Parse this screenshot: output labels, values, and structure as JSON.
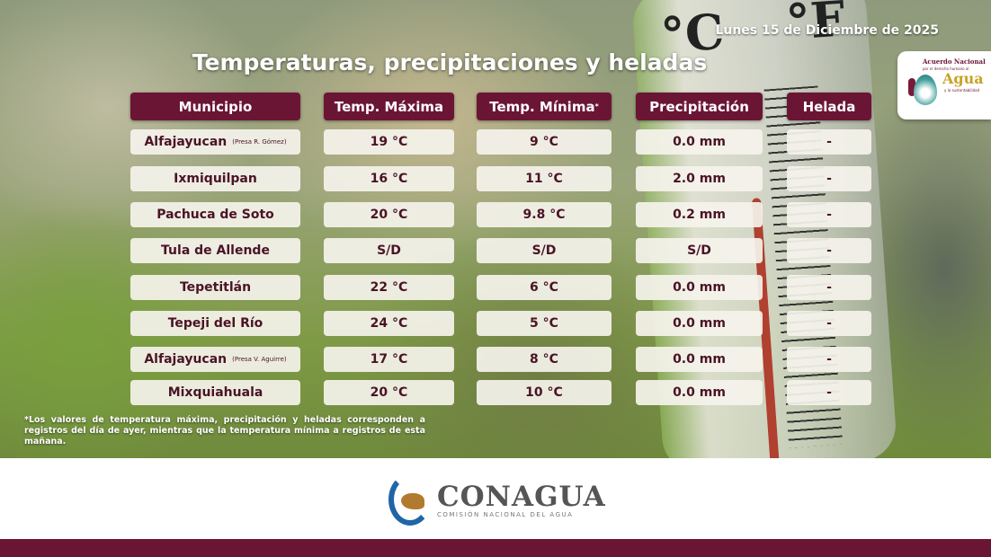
{
  "date": "Lunes 15 de Diciembre de 2025",
  "title": "Temperaturas, precipitaciones y heladas",
  "partner_logo": {
    "line1": "Acuerdo Nacional",
    "line2": "por el derecho humano al",
    "line3": "Agua",
    "line4": "y la sustentabilidad"
  },
  "thermometer": {
    "unit_c": "°C",
    "unit_f": "°F"
  },
  "headers": [
    "Municipio",
    "Temp. Máxima",
    "Temp. Mínima",
    "Precipitación",
    "Helada"
  ],
  "header_mark": "*",
  "rows": [
    {
      "municipio": "Alfajayucan",
      "sub": "(Presa R. Gómez)",
      "tmax": "19 °C",
      "tmin": "9 °C",
      "precip": "0.0 mm",
      "helada": "-"
    },
    {
      "municipio": "Ixmiquilpan",
      "sub": "",
      "tmax": "16 °C",
      "tmin": "11 °C",
      "precip": "2.0 mm",
      "helada": "-"
    },
    {
      "municipio": "Pachuca de Soto",
      "sub": "",
      "tmax": "20 °C",
      "tmin": "9.8 °C",
      "precip": "0.2 mm",
      "helada": "-"
    },
    {
      "municipio": "Tula de Allende",
      "sub": "",
      "tmax": "S/D",
      "tmin": "S/D",
      "precip": "S/D",
      "helada": "-"
    },
    {
      "municipio": "Tepetitlán",
      "sub": "",
      "tmax": "22 °C",
      "tmin": "6 °C",
      "precip": "0.0 mm",
      "helada": "-"
    },
    {
      "municipio": "Tepeji del Río",
      "sub": "",
      "tmax": "24 °C",
      "tmin": "5 °C",
      "precip": "0.0 mm",
      "helada": "-"
    },
    {
      "municipio": "Alfajayucan",
      "sub": "(Presa V. Aguirre)",
      "tmax": "17  °C",
      "tmin": "8 °C",
      "precip": "0.0 mm",
      "helada": "-"
    },
    {
      "municipio": "Mixquiahuala",
      "sub": "",
      "tmax": "20 °C",
      "tmin": "10 °C",
      "precip": "0.0 mm",
      "helada": "-"
    }
  ],
  "note": "*Los valores de temperatura máxima, precipitación y heladas corresponden a registros del día de ayer, mientras que la temperatura mínima a registros de esta mañana.",
  "footer": {
    "brand": "CONAGUA",
    "subtitle": "COMISIÓN NACIONAL DEL AGUA"
  },
  "colors": {
    "accent": "#6b1535",
    "cell_bg": "#f5f3ec"
  }
}
